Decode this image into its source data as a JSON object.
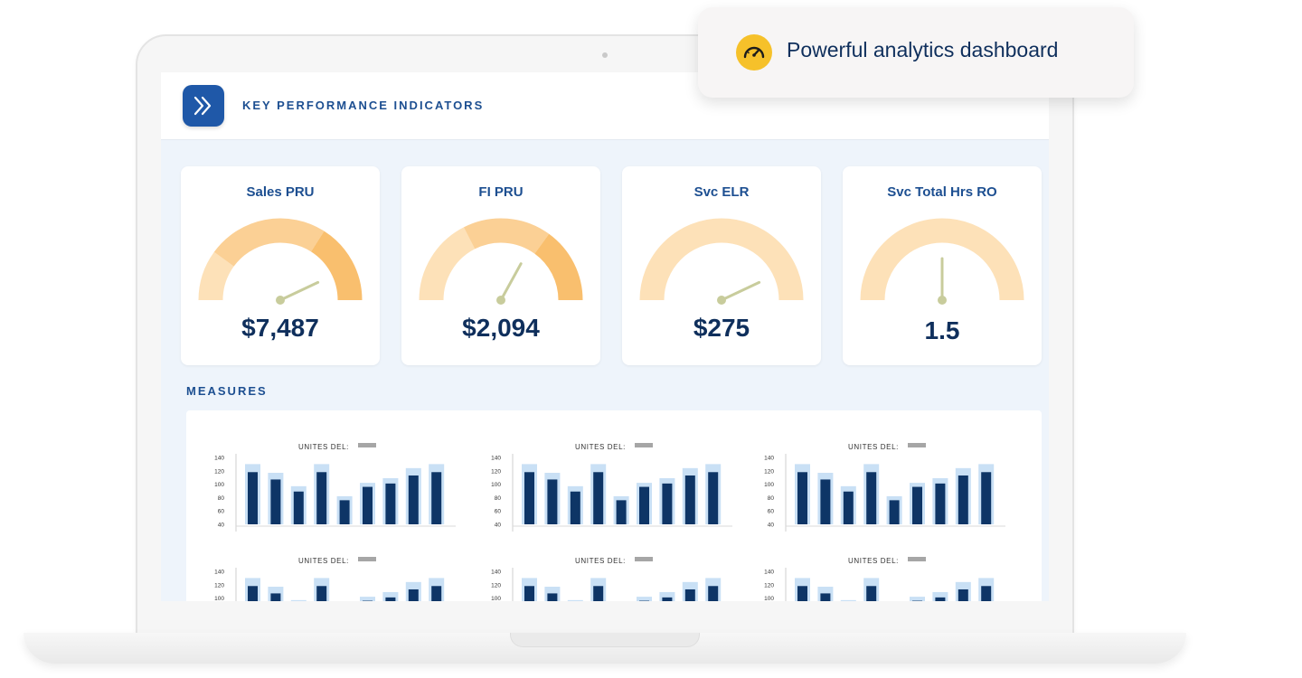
{
  "callout": {
    "text": "Powerful analytics dashboard",
    "icon": "speedometer-icon"
  },
  "header": {
    "title": "KEY PERFORMANCE INDICATORS",
    "logo_icon": "double-chevron-right-icon"
  },
  "colors": {
    "accent": "#1f58a8",
    "navy": "#0f2f5c",
    "gauge_light": "#fde1b8",
    "gauge_mid": "#fbd095",
    "gauge_strong": "#f9bf6e",
    "needle": "#c8cc9c",
    "bar_light": "#c9e0f5",
    "bar_dark": "#0e3566"
  },
  "kpis": [
    {
      "label": "Sales PRU",
      "value": "$7,487",
      "needle_fraction": 0.86
    },
    {
      "label": "FI PRU",
      "value": "$2,094",
      "needle_fraction": 0.66
    },
    {
      "label": "Svc ELR",
      "value": "$275",
      "needle_fraction": 0.86
    },
    {
      "label": "Svc Total Hrs RO",
      "value": "1.5",
      "needle_fraction": 0.5
    }
  ],
  "measures": {
    "title": "MEASURES",
    "legend_label": "UNITES DEL:",
    "y_ticks": [
      "140",
      "120",
      "100",
      "80",
      "60",
      "40"
    ],
    "series_outer": [
      130,
      117,
      97,
      130,
      82,
      102,
      109,
      124,
      130
    ],
    "series_inner": [
      118,
      107,
      89,
      118,
      76,
      96,
      101,
      113,
      118
    ]
  }
}
